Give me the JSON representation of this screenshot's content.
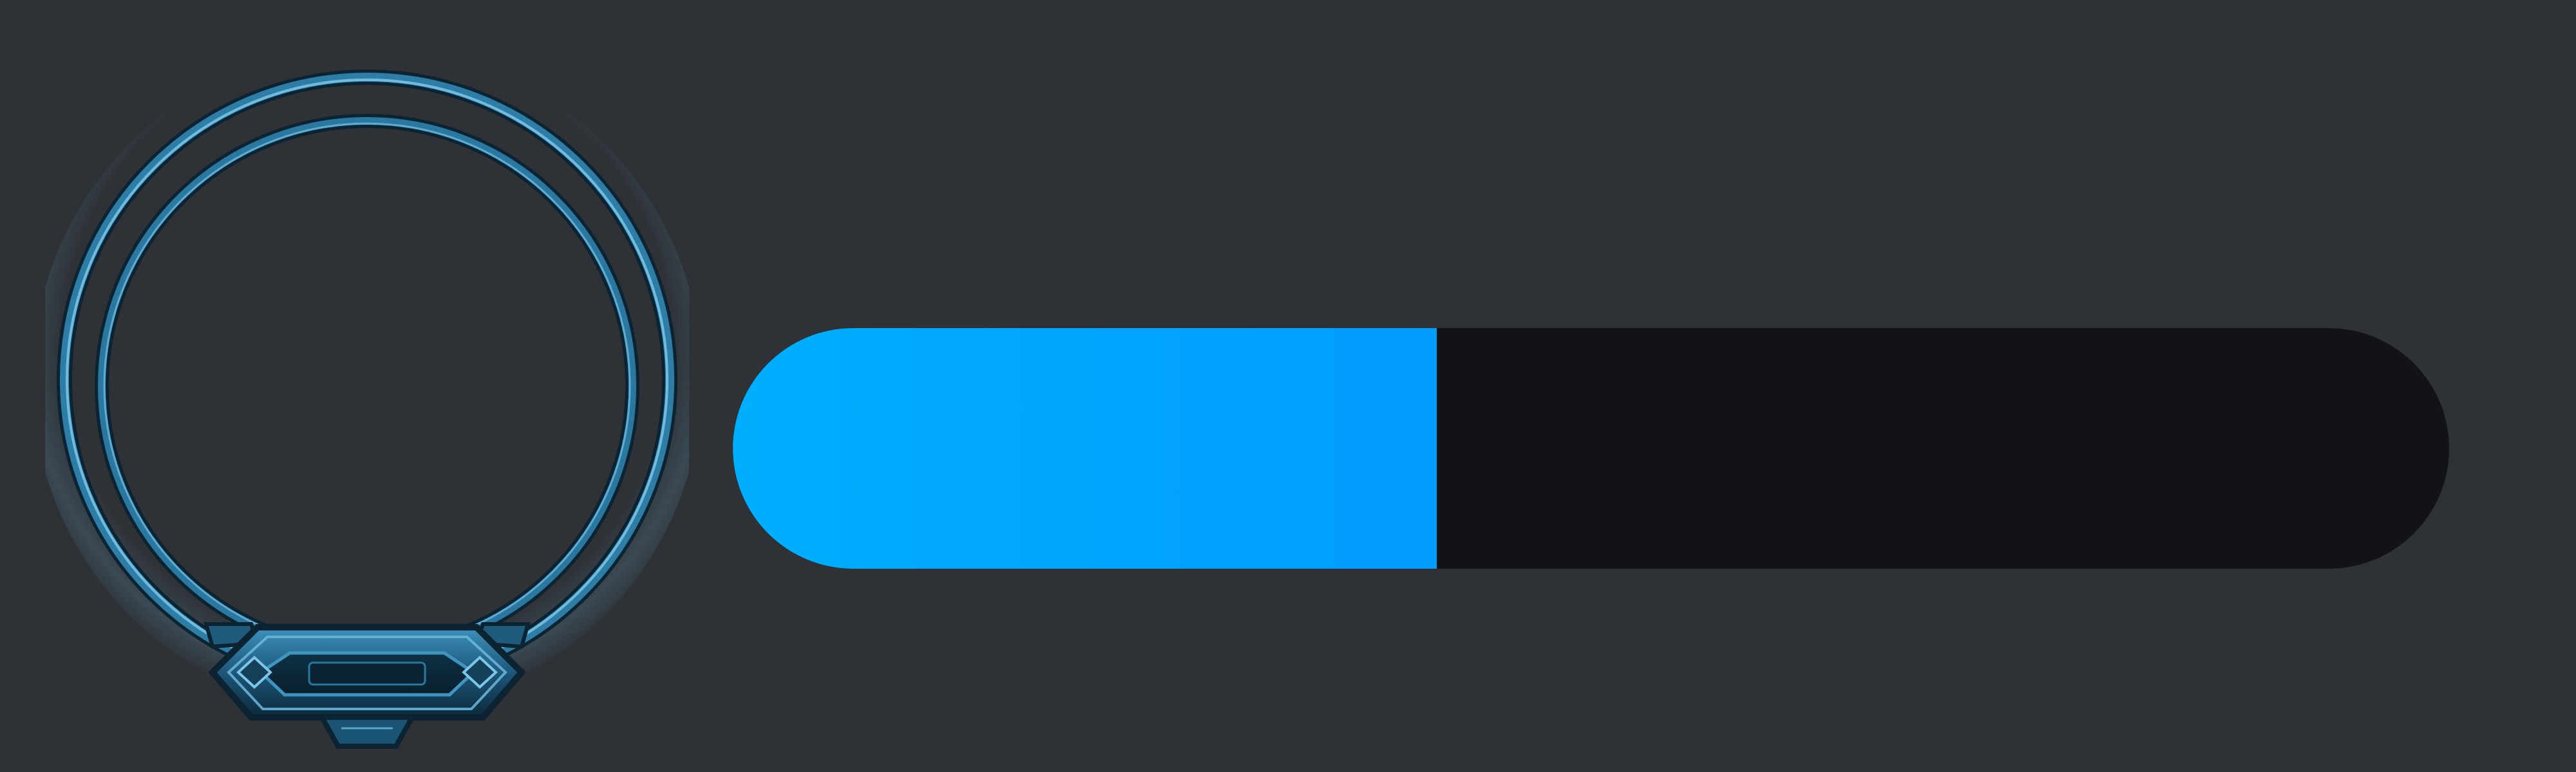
{
  "portrait": {
    "icon": "ornate-ring-frame-icon",
    "frame_color": "#2d7da6",
    "frame_highlight": "#7cc6e8",
    "frame_shadow": "#0c2331"
  },
  "progress_bar": {
    "value_fraction": 0.41,
    "fill_color_start": "#00aefe",
    "fill_color_end": "#019cff",
    "track_color": "#111317"
  },
  "background_color": "#2e3136"
}
